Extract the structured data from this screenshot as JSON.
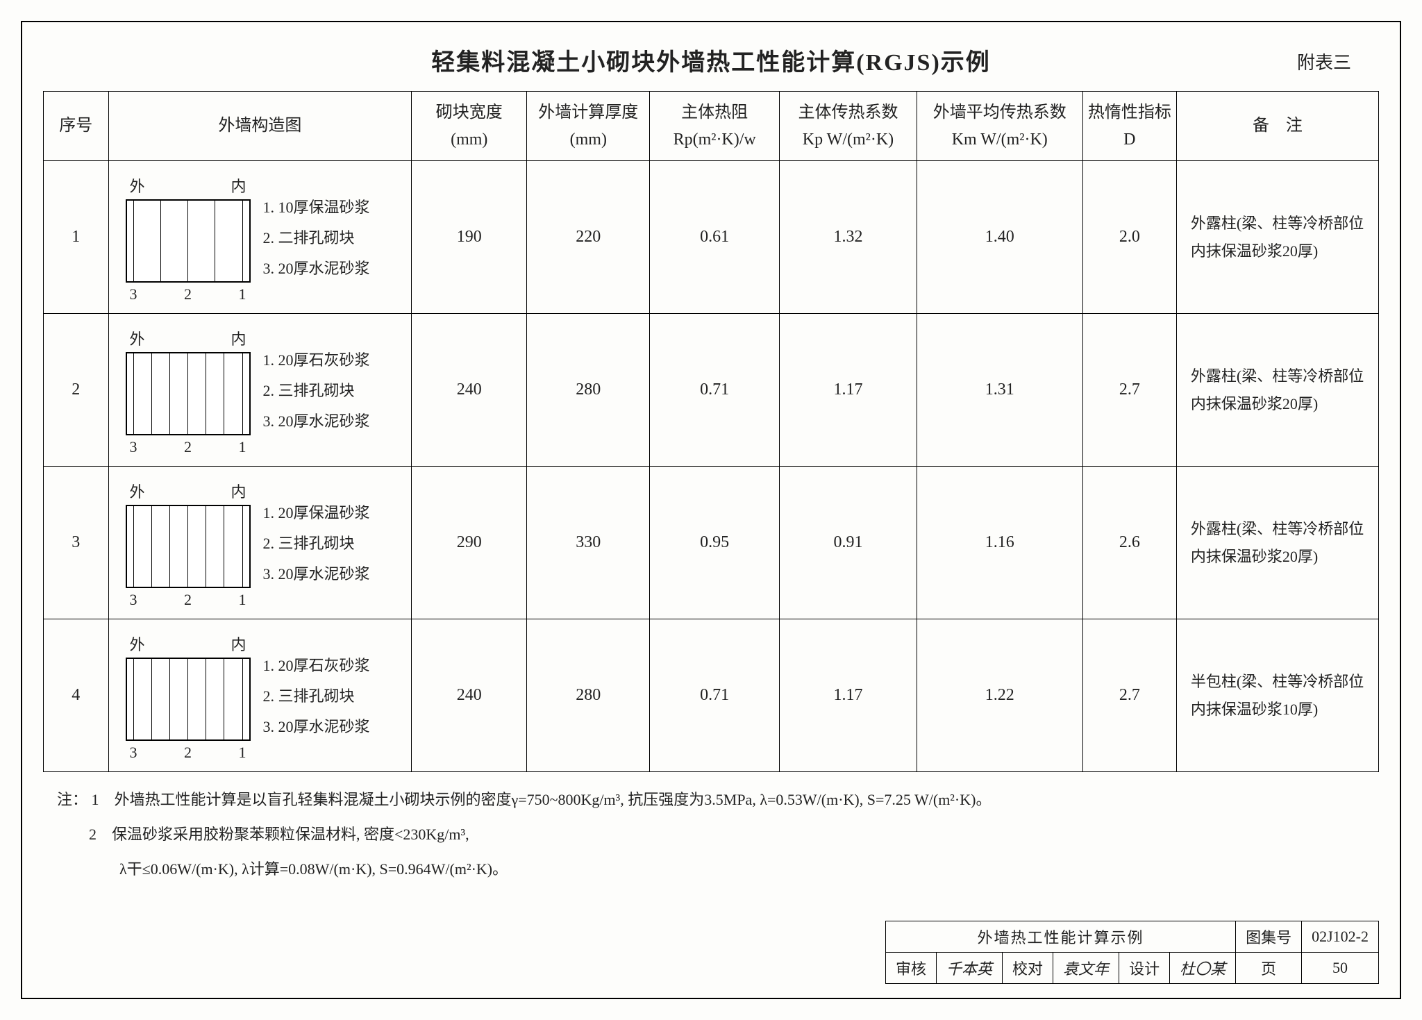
{
  "title": "轻集料混凝土小砌块外墙热工性能计算(RGJS)示例",
  "appendix": "附表三",
  "columns": {
    "seq": "序号",
    "diagram": "外墙构造图",
    "block_width": "砌块宽度\n(mm)",
    "wall_thick": "外墙计算厚度\n(mm)",
    "rp": "主体热阻\nRp(m²·K)/w",
    "kp": "主体传热系数\nKp W/(m²·K)",
    "km": "外墙平均传热系数\nKm W/(m²·K)",
    "d": "热惰性指标\nD",
    "note": "备　注"
  },
  "diag_top": {
    "out": "外",
    "in": "内"
  },
  "diag_bot": {
    "a": "3",
    "b": "2",
    "c": "1"
  },
  "rows": [
    {
      "seq": "1",
      "cavities": 4,
      "layers": [
        "1. 10厚保温砂浆",
        "2. 二排孔砌块",
        "3. 20厚水泥砂浆"
      ],
      "block_width": "190",
      "wall_thick": "220",
      "rp": "0.61",
      "kp": "1.32",
      "km": "1.40",
      "d": "2.0",
      "note": "外露柱(梁、柱等冷桥部位内抹保温砂浆20厚)"
    },
    {
      "seq": "2",
      "cavities": 6,
      "layers": [
        "1. 20厚石灰砂浆",
        "2. 三排孔砌块",
        "3. 20厚水泥砂浆"
      ],
      "block_width": "240",
      "wall_thick": "280",
      "rp": "0.71",
      "kp": "1.17",
      "km": "1.31",
      "d": "2.7",
      "note": "外露柱(梁、柱等冷桥部位内抹保温砂浆20厚)"
    },
    {
      "seq": "3",
      "cavities": 6,
      "layers": [
        "1. 20厚保温砂浆",
        "2. 三排孔砌块",
        "3. 20厚水泥砂浆"
      ],
      "block_width": "290",
      "wall_thick": "330",
      "rp": "0.95",
      "kp": "0.91",
      "km": "1.16",
      "d": "2.6",
      "note": "外露柱(梁、柱等冷桥部位内抹保温砂浆20厚)"
    },
    {
      "seq": "4",
      "cavities": 6,
      "layers": [
        "1. 20厚石灰砂浆",
        "2. 三排孔砌块",
        "3. 20厚水泥砂浆"
      ],
      "block_width": "240",
      "wall_thick": "280",
      "rp": "0.71",
      "kp": "1.17",
      "km": "1.22",
      "d": "2.7",
      "note": "半包柱(梁、柱等冷桥部位内抹保温砂浆10厚)"
    }
  ],
  "notes": {
    "label": "注：",
    "n1": "1　外墙热工性能计算是以盲孔轻集料混凝土小砌块示例的密度γ=750~800Kg/m³, 抗压强度为3.5MPa, λ=0.53W/(m·K), S=7.25 W/(m²·K)。",
    "n2a": "2　保温砂浆采用胶粉聚苯颗粒保温材料, 密度<230Kg/m³,",
    "n2b": "　　λ干≤0.06W/(m·K), λ计算=0.08W/(m·K), S=0.964W/(m²·K)。"
  },
  "footer": {
    "block_title": "外墙热工性能计算示例",
    "atlas_label": "图集号",
    "atlas_no": "02J102-2",
    "review_label": "审核",
    "review_sig": "千本英",
    "check_label": "校对",
    "check_sig": "袁文年",
    "design_label": "设计",
    "design_sig": "杜〇某",
    "page_label": "页",
    "page_no": "50"
  }
}
